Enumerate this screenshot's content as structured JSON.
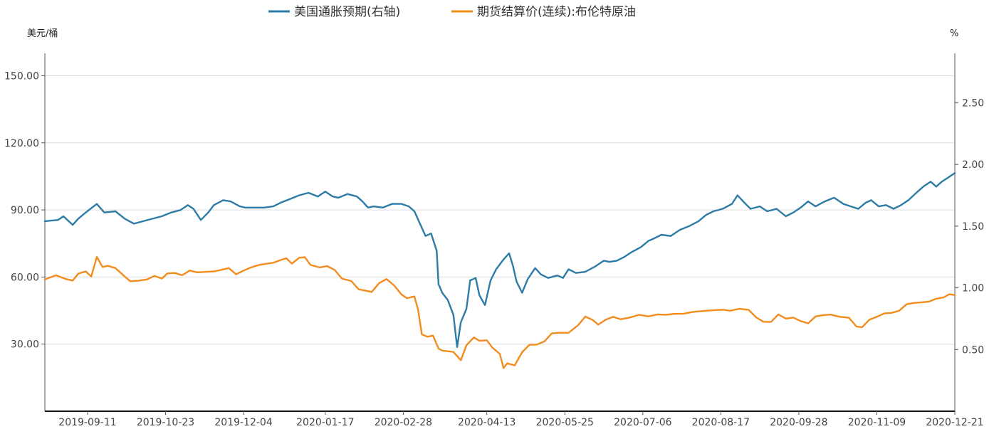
{
  "chart_data": {
    "type": "line",
    "legend_placement": "top-center",
    "grid": {
      "horizontal": true,
      "vertical": false
    },
    "left_axis": {
      "unit_label": "美元/桶",
      "ylim": [
        0,
        160
      ],
      "ticks": [
        30,
        60,
        90,
        120,
        150
      ],
      "tick_labels": [
        "30.00",
        "60.00",
        "90.00",
        "120.00",
        "150.00"
      ]
    },
    "right_axis": {
      "unit_label": "%",
      "ylim": [
        0.0,
        2.9
      ],
      "ticks": [
        0.5,
        1.0,
        1.5,
        2.0,
        2.5
      ],
      "tick_labels": [
        "0.50",
        "1.00",
        "1.50",
        "2.00",
        "2.50"
      ]
    },
    "x_axis": {
      "start": "2019-08-19",
      "end": "2020-12-21",
      "tick_labels": [
        "2019-09-11",
        "2019-10-23",
        "2019-12-04",
        "2020-01-17",
        "2020-02-28",
        "2020-04-13",
        "2020-05-25",
        "2020-07-06",
        "2020-08-17",
        "2020-09-28",
        "2020-11-09",
        "2020-12-21"
      ]
    },
    "series": [
      {
        "name": "美国通胀预期(右轴)",
        "axis": "right",
        "color": "#2e7ca6",
        "points": [
          [
            "2019-08-19",
            1.54
          ],
          [
            "2019-08-26",
            1.55
          ],
          [
            "2019-08-29",
            1.58
          ],
          [
            "2019-09-03",
            1.51
          ],
          [
            "2019-09-06",
            1.56
          ],
          [
            "2019-09-10",
            1.61
          ],
          [
            "2019-09-16",
            1.68
          ],
          [
            "2019-09-20",
            1.61
          ],
          [
            "2019-09-26",
            1.62
          ],
          [
            "2019-10-01",
            1.56
          ],
          [
            "2019-10-06",
            1.52
          ],
          [
            "2019-10-11",
            1.54
          ],
          [
            "2019-10-16",
            1.56
          ],
          [
            "2019-10-21",
            1.58
          ],
          [
            "2019-10-26",
            1.61
          ],
          [
            "2019-10-31",
            1.63
          ],
          [
            "2019-11-04",
            1.67
          ],
          [
            "2019-11-07",
            1.64
          ],
          [
            "2019-11-11",
            1.55
          ],
          [
            "2019-11-15",
            1.61
          ],
          [
            "2019-11-18",
            1.67
          ],
          [
            "2019-11-23",
            1.71
          ],
          [
            "2019-11-27",
            1.7
          ],
          [
            "2019-12-02",
            1.66
          ],
          [
            "2019-12-05",
            1.65
          ],
          [
            "2019-12-10",
            1.65
          ],
          [
            "2019-12-15",
            1.65
          ],
          [
            "2019-12-20",
            1.66
          ],
          [
            "2019-12-24",
            1.69
          ],
          [
            "2019-12-29",
            1.72
          ],
          [
            "2020-01-03",
            1.75
          ],
          [
            "2020-01-08",
            1.77
          ],
          [
            "2020-01-13",
            1.74
          ],
          [
            "2020-01-17",
            1.78
          ],
          [
            "2020-01-21",
            1.74
          ],
          [
            "2020-01-24",
            1.73
          ],
          [
            "2020-01-29",
            1.76
          ],
          [
            "2020-02-03",
            1.74
          ],
          [
            "2020-02-06",
            1.7
          ],
          [
            "2020-02-09",
            1.65
          ],
          [
            "2020-02-12",
            1.66
          ],
          [
            "2020-02-17",
            1.65
          ],
          [
            "2020-02-22",
            1.68
          ],
          [
            "2020-02-27",
            1.68
          ],
          [
            "2020-03-02",
            1.66
          ],
          [
            "2020-03-05",
            1.62
          ],
          [
            "2020-03-08",
            1.52
          ],
          [
            "2020-03-11",
            1.42
          ],
          [
            "2020-03-14",
            1.44
          ],
          [
            "2020-03-17",
            1.3
          ],
          [
            "2020-03-18",
            1.03
          ],
          [
            "2020-03-20",
            0.96
          ],
          [
            "2020-03-23",
            0.9
          ],
          [
            "2020-03-26",
            0.78
          ],
          [
            "2020-03-28",
            0.52
          ],
          [
            "2020-03-30",
            0.72
          ],
          [
            "2020-04-02",
            0.83
          ],
          [
            "2020-04-04",
            1.06
          ],
          [
            "2020-04-07",
            1.08
          ],
          [
            "2020-04-09",
            0.94
          ],
          [
            "2020-04-12",
            0.86
          ],
          [
            "2020-04-15",
            1.06
          ],
          [
            "2020-04-18",
            1.15
          ],
          [
            "2020-04-22",
            1.23
          ],
          [
            "2020-04-25",
            1.28
          ],
          [
            "2020-04-27",
            1.18
          ],
          [
            "2020-04-29",
            1.05
          ],
          [
            "2020-05-02",
            0.96
          ],
          [
            "2020-05-05",
            1.07
          ],
          [
            "2020-05-09",
            1.16
          ],
          [
            "2020-05-12",
            1.11
          ],
          [
            "2020-05-16",
            1.08
          ],
          [
            "2020-05-21",
            1.1
          ],
          [
            "2020-05-24",
            1.08
          ],
          [
            "2020-05-27",
            1.15
          ],
          [
            "2020-05-31",
            1.12
          ],
          [
            "2020-06-05",
            1.13
          ],
          [
            "2020-06-10",
            1.17
          ],
          [
            "2020-06-15",
            1.22
          ],
          [
            "2020-06-18",
            1.21
          ],
          [
            "2020-06-22",
            1.22
          ],
          [
            "2020-06-26",
            1.25
          ],
          [
            "2020-06-30",
            1.29
          ],
          [
            "2020-07-05",
            1.33
          ],
          [
            "2020-07-09",
            1.38
          ],
          [
            "2020-07-12",
            1.4
          ],
          [
            "2020-07-16",
            1.43
          ],
          [
            "2020-07-21",
            1.42
          ],
          [
            "2020-07-26",
            1.47
          ],
          [
            "2020-07-31",
            1.5
          ],
          [
            "2020-08-05",
            1.54
          ],
          [
            "2020-08-09",
            1.59
          ],
          [
            "2020-08-13",
            1.62
          ],
          [
            "2020-08-18",
            1.64
          ],
          [
            "2020-08-23",
            1.68
          ],
          [
            "2020-08-26",
            1.75
          ],
          [
            "2020-08-29",
            1.7
          ],
          [
            "2020-09-02",
            1.64
          ],
          [
            "2020-09-07",
            1.66
          ],
          [
            "2020-09-11",
            1.62
          ],
          [
            "2020-09-16",
            1.64
          ],
          [
            "2020-09-21",
            1.58
          ],
          [
            "2020-09-25",
            1.61
          ],
          [
            "2020-09-29",
            1.65
          ],
          [
            "2020-10-03",
            1.7
          ],
          [
            "2020-10-07",
            1.66
          ],
          [
            "2020-10-12",
            1.7
          ],
          [
            "2020-10-17",
            1.73
          ],
          [
            "2020-10-22",
            1.68
          ],
          [
            "2020-10-26",
            1.66
          ],
          [
            "2020-10-30",
            1.64
          ],
          [
            "2020-11-03",
            1.69
          ],
          [
            "2020-11-06",
            1.71
          ],
          [
            "2020-11-10",
            1.66
          ],
          [
            "2020-11-14",
            1.67
          ],
          [
            "2020-11-18",
            1.64
          ],
          [
            "2020-11-22",
            1.67
          ],
          [
            "2020-11-26",
            1.71
          ],
          [
            "2020-12-01",
            1.78
          ],
          [
            "2020-12-04",
            1.82
          ],
          [
            "2020-12-08",
            1.86
          ],
          [
            "2020-12-11",
            1.82
          ],
          [
            "2020-12-14",
            1.86
          ],
          [
            "2020-12-17",
            1.89
          ],
          [
            "2020-12-21",
            1.93
          ]
        ]
      },
      {
        "name": "期货结算价(连续):布伦特原油",
        "axis": "left",
        "color": "#f28c1f",
        "points": [
          [
            "2019-08-19",
            58.9
          ],
          [
            "2019-08-25",
            60.8
          ],
          [
            "2019-08-30",
            59.2
          ],
          [
            "2019-09-03",
            58.4
          ],
          [
            "2019-09-06",
            61.5
          ],
          [
            "2019-09-10",
            62.5
          ],
          [
            "2019-09-13",
            60.2
          ],
          [
            "2019-09-16",
            69.0
          ],
          [
            "2019-09-19",
            64.5
          ],
          [
            "2019-09-22",
            65.0
          ],
          [
            "2019-09-26",
            64.0
          ],
          [
            "2019-10-01",
            60.2
          ],
          [
            "2019-10-04",
            58.1
          ],
          [
            "2019-10-08",
            58.3
          ],
          [
            "2019-10-13",
            58.9
          ],
          [
            "2019-10-17",
            60.5
          ],
          [
            "2019-10-21",
            59.3
          ],
          [
            "2019-10-24",
            61.6
          ],
          [
            "2019-10-28",
            61.8
          ],
          [
            "2019-11-01",
            60.8
          ],
          [
            "2019-11-05",
            62.9
          ],
          [
            "2019-11-09",
            62.1
          ],
          [
            "2019-11-14",
            62.3
          ],
          [
            "2019-11-18",
            62.5
          ],
          [
            "2019-11-22",
            63.2
          ],
          [
            "2019-11-26",
            64.0
          ],
          [
            "2019-11-30",
            61.2
          ],
          [
            "2019-12-04",
            62.9
          ],
          [
            "2019-12-08",
            64.3
          ],
          [
            "2019-12-12",
            65.3
          ],
          [
            "2019-12-16",
            65.9
          ],
          [
            "2019-12-20",
            66.4
          ],
          [
            "2019-12-24",
            67.6
          ],
          [
            "2019-12-27",
            68.4
          ],
          [
            "2019-12-30",
            66.0
          ],
          [
            "2020-01-03",
            68.6
          ],
          [
            "2020-01-06",
            68.9
          ],
          [
            "2020-01-09",
            65.4
          ],
          [
            "2020-01-14",
            64.3
          ],
          [
            "2020-01-18",
            64.9
          ],
          [
            "2020-01-22",
            63.2
          ],
          [
            "2020-01-26",
            59.3
          ],
          [
            "2020-01-31",
            58.2
          ],
          [
            "2020-02-04",
            54.5
          ],
          [
            "2020-02-07",
            54.0
          ],
          [
            "2020-02-11",
            53.3
          ],
          [
            "2020-02-15",
            57.3
          ],
          [
            "2020-02-19",
            59.1
          ],
          [
            "2020-02-23",
            56.3
          ],
          [
            "2020-02-27",
            52.2
          ],
          [
            "2020-03-01",
            50.5
          ],
          [
            "2020-03-05",
            51.3
          ],
          [
            "2020-03-07",
            45.3
          ],
          [
            "2020-03-09",
            34.4
          ],
          [
            "2020-03-12",
            33.3
          ],
          [
            "2020-03-15",
            33.8
          ],
          [
            "2020-03-18",
            28.0
          ],
          [
            "2020-03-20",
            27.1
          ],
          [
            "2020-03-23",
            26.8
          ],
          [
            "2020-03-26",
            26.5
          ],
          [
            "2020-03-30",
            22.8
          ],
          [
            "2020-04-02",
            29.5
          ],
          [
            "2020-04-06",
            33.0
          ],
          [
            "2020-04-09",
            31.5
          ],
          [
            "2020-04-13",
            31.7
          ],
          [
            "2020-04-16",
            28.4
          ],
          [
            "2020-04-20",
            25.6
          ],
          [
            "2020-04-22",
            19.3
          ],
          [
            "2020-04-24",
            21.4
          ],
          [
            "2020-04-28",
            20.5
          ],
          [
            "2020-05-02",
            26.4
          ],
          [
            "2020-05-06",
            29.7
          ],
          [
            "2020-05-10",
            29.8
          ],
          [
            "2020-05-14",
            31.2
          ],
          [
            "2020-05-18",
            34.8
          ],
          [
            "2020-05-22",
            35.1
          ],
          [
            "2020-05-27",
            35.1
          ],
          [
            "2020-06-01",
            38.3
          ],
          [
            "2020-06-05",
            42.3
          ],
          [
            "2020-06-09",
            40.8
          ],
          [
            "2020-06-12",
            38.7
          ],
          [
            "2020-06-16",
            40.9
          ],
          [
            "2020-06-20",
            42.2
          ],
          [
            "2020-06-24",
            41.1
          ],
          [
            "2020-06-29",
            41.9
          ],
          [
            "2020-07-04",
            43.1
          ],
          [
            "2020-07-09",
            42.4
          ],
          [
            "2020-07-14",
            43.3
          ],
          [
            "2020-07-18",
            43.1
          ],
          [
            "2020-07-23",
            43.5
          ],
          [
            "2020-07-28",
            43.6
          ],
          [
            "2020-08-02",
            44.4
          ],
          [
            "2020-08-07",
            44.8
          ],
          [
            "2020-08-12",
            45.1
          ],
          [
            "2020-08-18",
            45.4
          ],
          [
            "2020-08-22",
            44.9
          ],
          [
            "2020-08-27",
            45.8
          ],
          [
            "2020-09-01",
            45.3
          ],
          [
            "2020-09-05",
            42.0
          ],
          [
            "2020-09-09",
            40.0
          ],
          [
            "2020-09-13",
            39.9
          ],
          [
            "2020-09-17",
            43.3
          ],
          [
            "2020-09-21",
            41.4
          ],
          [
            "2020-09-25",
            41.9
          ],
          [
            "2020-09-29",
            40.3
          ],
          [
            "2020-10-03",
            39.3
          ],
          [
            "2020-10-07",
            42.4
          ],
          [
            "2020-10-11",
            42.9
          ],
          [
            "2020-10-15",
            43.2
          ],
          [
            "2020-10-20",
            42.2
          ],
          [
            "2020-10-25",
            41.8
          ],
          [
            "2020-10-29",
            37.9
          ],
          [
            "2020-11-01",
            37.5
          ],
          [
            "2020-11-05",
            40.9
          ],
          [
            "2020-11-09",
            42.2
          ],
          [
            "2020-11-13",
            43.7
          ],
          [
            "2020-11-17",
            44.0
          ],
          [
            "2020-11-21",
            44.9
          ],
          [
            "2020-11-25",
            47.8
          ],
          [
            "2020-11-29",
            48.4
          ],
          [
            "2020-12-03",
            48.7
          ],
          [
            "2020-12-07",
            49.0
          ],
          [
            "2020-12-11",
            50.3
          ],
          [
            "2020-12-15",
            50.9
          ],
          [
            "2020-12-18",
            52.3
          ],
          [
            "2020-12-21",
            51.9
          ]
        ]
      }
    ]
  }
}
